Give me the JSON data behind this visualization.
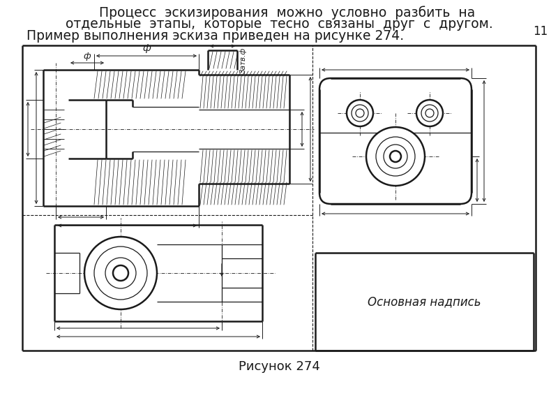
{
  "bg_color": "#ffffff",
  "line_color": "#1a1a1a",
  "header_line1": "    Процесс  эскизирования  можно  условно  разбить  на",
  "header_line2": "отдельные  этапы,  которые  тесно  связаны  друг  с  другом.",
  "header_line3": "Пример выполнения эскиза приведен на рисунке 274.",
  "caption": "Рисунок 274",
  "page_num": "11",
  "osnov_napis": "Основная надпись",
  "phi_label": "ф",
  "zatv_label": "Затв.ф",
  "title_fontsize": 13.5,
  "caption_fontsize": 13
}
